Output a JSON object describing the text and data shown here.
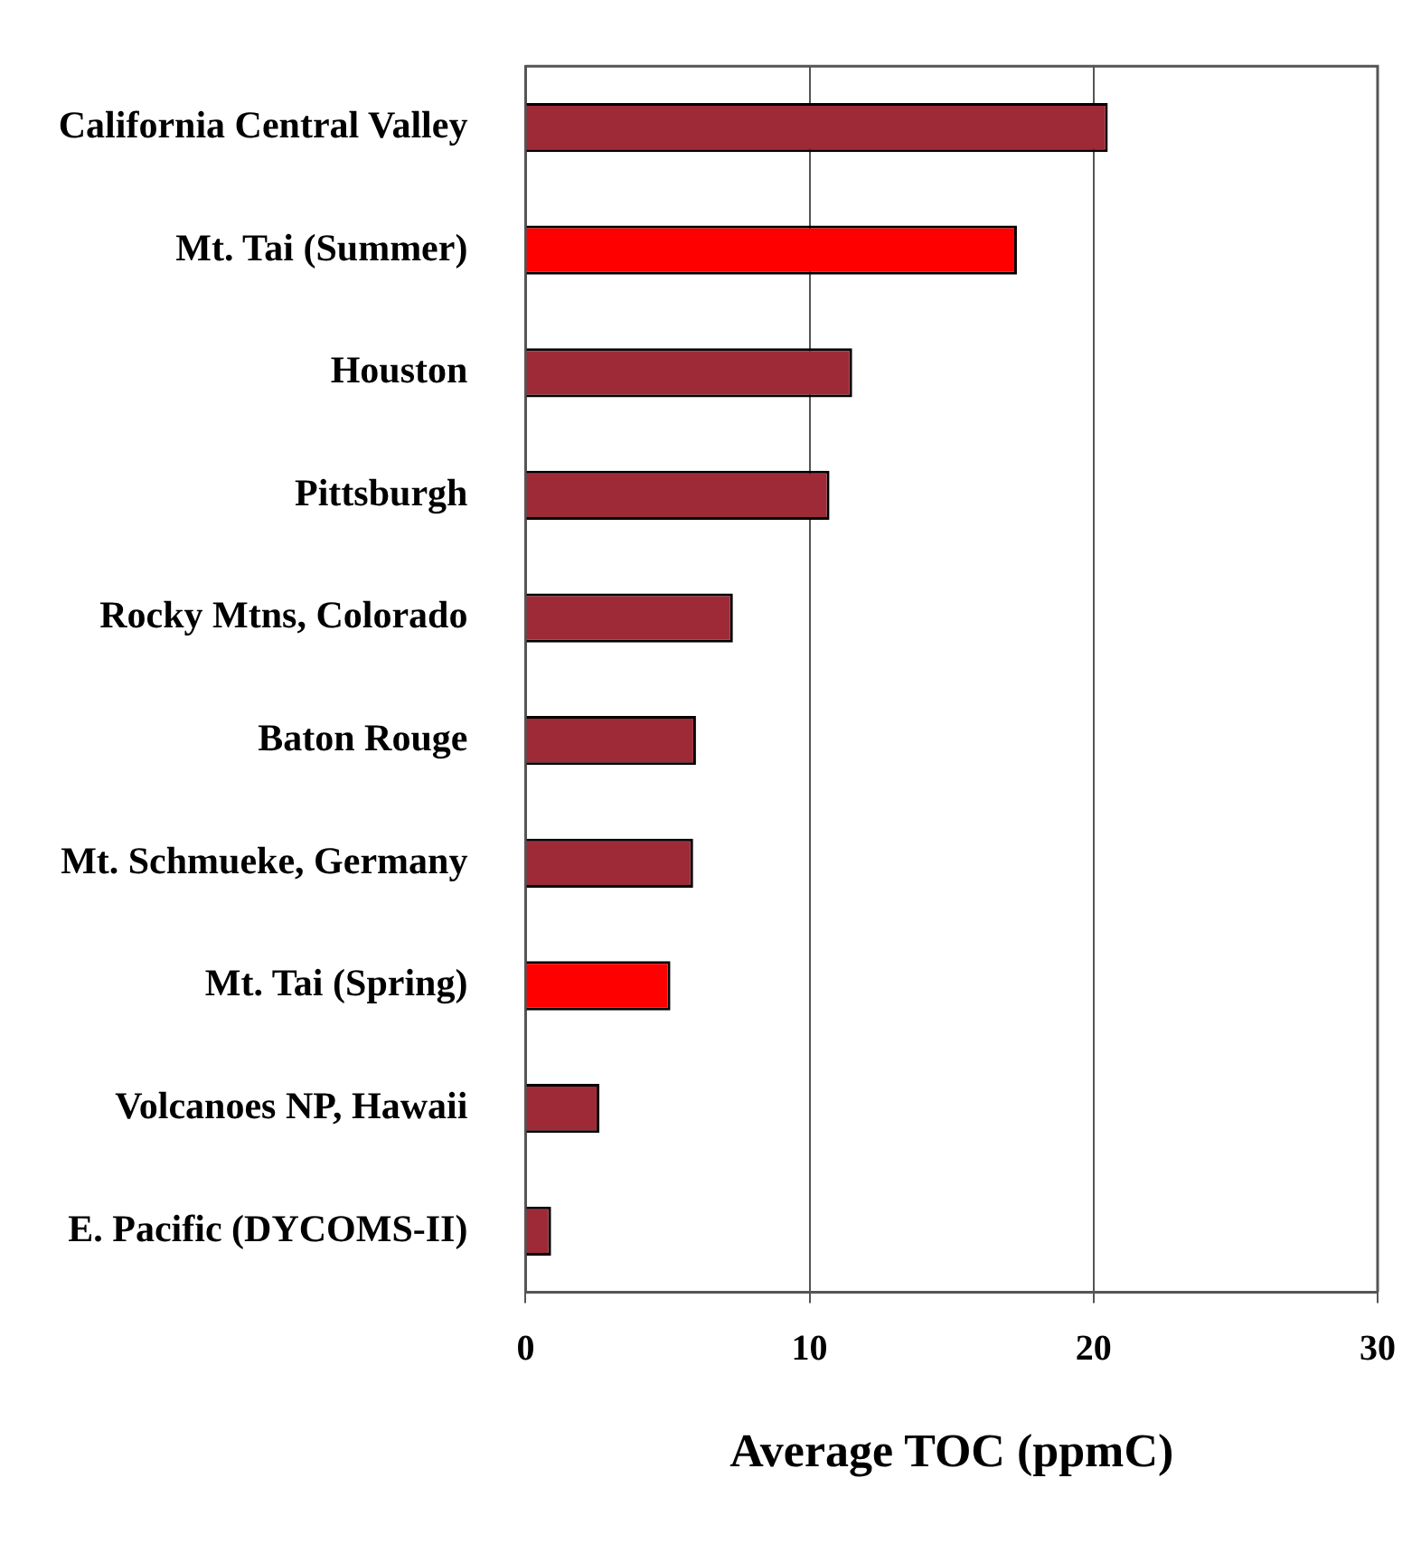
{
  "chart_data": {
    "type": "bar",
    "orientation": "horizontal",
    "xlabel": "Average TOC (ppmC)",
    "categories": [
      "California Central Valley",
      "Mt. Tai (Summer)",
      "Houston",
      "Pittsburgh",
      "Rocky Mtns, Colorado",
      "Baton Rouge",
      "Mt. Schmueke, Germany",
      "Mt. Tai (Spring)",
      "Volcanoes NP, Hawaii",
      "E. Pacific (DYCOMS-II)"
    ],
    "values": [
      20.5,
      17.3,
      11.5,
      10.7,
      7.3,
      6.0,
      5.9,
      5.1,
      2.6,
      0.9
    ],
    "colors": [
      "#9e2a38",
      "#ff0000",
      "#9e2a38",
      "#9e2a38",
      "#9e2a38",
      "#9e2a38",
      "#9e2a38",
      "#ff0000",
      "#9e2a38",
      "#9e2a38"
    ],
    "xlim": [
      0,
      30
    ],
    "xticks": [
      0,
      10,
      20,
      30
    ],
    "grid": "x",
    "legend": false
  }
}
